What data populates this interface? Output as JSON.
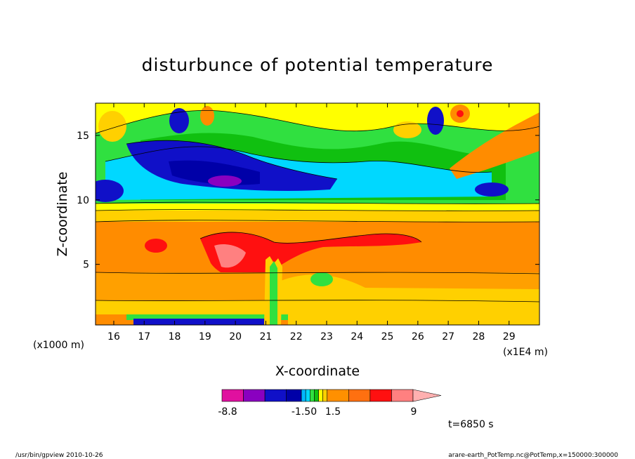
{
  "chart_data": {
    "type": "heatmap",
    "title": "disturbunce of potential temperature",
    "xlabel": "X-coordinate",
    "ylabel": "Z-coordinate",
    "x_unit_left": "(x1000 m)",
    "x_unit_right": "(x1E4 m)",
    "xlim": [
      15.4,
      30.0
    ],
    "ylim": [
      0.3,
      17.5
    ],
    "xticks": [
      "16",
      "17",
      "18",
      "19",
      "20",
      "21",
      "22",
      "23",
      "24",
      "25",
      "26",
      "27",
      "28",
      "29"
    ],
    "xtick_values": [
      16,
      17,
      18,
      19,
      20,
      21,
      22,
      23,
      24,
      25,
      26,
      27,
      28,
      29
    ],
    "yticks": [
      "5",
      "10",
      "15"
    ],
    "ytick_values": [
      5,
      10,
      15
    ],
    "colorbar": {
      "colors": [
        "#e0109f",
        "#8a00c0",
        "#1010c8",
        "#0000a8",
        "#00b8ff",
        "#00d8ff",
        "#30e040",
        "#10c010",
        "#ffff00",
        "#ffd000",
        "#ff9000",
        "#ff7010",
        "#ff1010",
        "#ff8080",
        "#ffb0b0"
      ],
      "tick_labels": [
        "-8.8",
        "-1.50",
        "1.5",
        "9"
      ]
    },
    "time_label": "t=6850 s",
    "footer_left": "/usr/bin/gpview  2010-10-26",
    "footer_right": "arare-earth_PotTemp.nc@PotTemp,x=150000:300000"
  }
}
